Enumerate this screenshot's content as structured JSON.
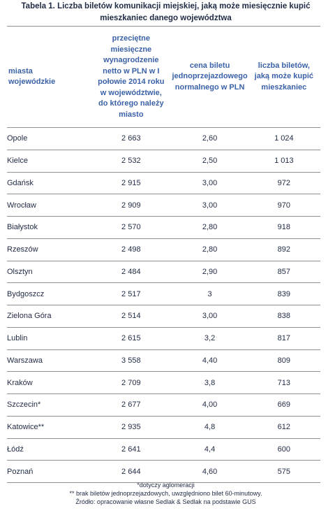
{
  "title": {
    "line1": "Tabela 1. Liczba biletów komunikacji miejskiej, jaką może miesięcznie kupić",
    "line2": "mieszkaniec danego województwa"
  },
  "headers": {
    "city": [
      "miasta",
      "wojewódzkie"
    ],
    "salary": [
      "przeciętne",
      "miesięczne",
      "wynagrodzenie",
      "netto w PLN w I",
      "połowie 2014  roku",
      "w województwie,",
      "do którego należy",
      "miasto"
    ],
    "price": [
      "cena biletu",
      "jednoprzejazdowego",
      "normalnego w PLN"
    ],
    "tickets": [
      "liczba biletów,",
      "jaką może kupić",
      "mieszkaniec"
    ]
  },
  "rows": [
    {
      "city": "Opole",
      "salary": "2 663",
      "price": "2,60",
      "tickets": "1 024"
    },
    {
      "city": "Kielce",
      "salary": "2 532",
      "price": "2,50",
      "tickets": "1 013"
    },
    {
      "city": "Gdańsk",
      "salary": "2 915",
      "price": "3,00",
      "tickets": "972"
    },
    {
      "city": "Wrocław",
      "salary": "2 909",
      "price": "3,00",
      "tickets": "970"
    },
    {
      "city": "Białystok",
      "salary": "2 570",
      "price": "2,80",
      "tickets": "918"
    },
    {
      "city": "Rzeszów",
      "salary": "2 498",
      "price": "2,80",
      "tickets": "892"
    },
    {
      "city": "Olsztyn",
      "salary": "2 484",
      "price": "2,90",
      "tickets": "857"
    },
    {
      "city": "Bydgoszcz",
      "salary": "2 517",
      "price": "3",
      "tickets": "839"
    },
    {
      "city": "Zielona Góra",
      "salary": "2 514",
      "price": "3,00",
      "tickets": "838"
    },
    {
      "city": "Lublin",
      "salary": "2 615",
      "price": "3,2",
      "tickets": "817"
    },
    {
      "city": "Warszawa",
      "salary": "3 558",
      "price": "4,40",
      "tickets": "809"
    },
    {
      "city": "Kraków",
      "salary": "2 709",
      "price": "3,8",
      "tickets": "713"
    },
    {
      "city": "Szczecin*",
      "salary": "2 677",
      "price": "4,00",
      "tickets": "669"
    },
    {
      "city": "Katowice**",
      "salary": "2 935",
      "price": "4,8",
      "tickets": "612"
    },
    {
      "city": "Łódź",
      "salary": "2 641",
      "price": "4,4",
      "tickets": "600"
    },
    {
      "city": "Poznań",
      "salary": "2 644",
      "price": "4,60",
      "tickets": "575"
    }
  ],
  "notes": {
    "n1": "*dotyczy aglomeracji",
    "n2": "** brak biletów jednoprzejazdowych, uwzględniono bilet 60-minutowy.",
    "source": "Źródło: opracowanie własne Sedlak & Sedlak na podstawie GUS"
  },
  "colors": {
    "header": "#3b62a8",
    "text": "#1f2a44",
    "rule": "#8f8f8f"
  }
}
